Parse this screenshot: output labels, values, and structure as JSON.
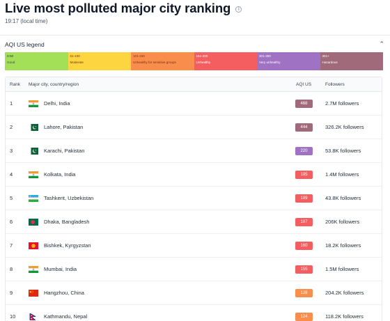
{
  "header": {
    "title": "Live most polluted major city ranking",
    "local_time": "19:17 (local time)"
  },
  "legend": {
    "title": "AQI US legend",
    "segments": [
      {
        "range": "0-50",
        "label": "Good",
        "color": "#a3df57"
      },
      {
        "range": "51-100",
        "label": "Moderate",
        "color": "#fcd540"
      },
      {
        "range": "101-150",
        "label": "Unhealthy for sensitive groups",
        "color": "#f88d4c"
      },
      {
        "range": "151-200",
        "label": "Unhealthy",
        "color": "#f55e60"
      },
      {
        "range": "201-300",
        "label": "Very unhealthy",
        "color": "#a072c4"
      },
      {
        "range": "301+",
        "label": "Hazardous",
        "color": "#a06a7b"
      }
    ]
  },
  "table": {
    "columns": {
      "rank": "Rank",
      "city": "Major city, country/region",
      "aqi": "AQI US",
      "followers": "Followers"
    },
    "rows": [
      {
        "rank": "1",
        "flag": "india-flag-icon",
        "city": "Delhi, India",
        "aqi": "468",
        "aqi_color": "#a06a7b",
        "followers": "2.7M followers"
      },
      {
        "rank": "2",
        "flag": "pakistan-flag-icon",
        "city": "Lahore, Pakistan",
        "aqi": "444",
        "aqi_color": "#a06a7b",
        "followers": "326.2K followers"
      },
      {
        "rank": "3",
        "flag": "pakistan-flag-icon",
        "city": "Karachi, Pakistan",
        "aqi": "220",
        "aqi_color": "#a072c4",
        "followers": "53.8K followers"
      },
      {
        "rank": "4",
        "flag": "india-flag-icon",
        "city": "Kolkata, India",
        "aqi": "195",
        "aqi_color": "#f55e60",
        "followers": "1.4M followers"
      },
      {
        "rank": "5",
        "flag": "uzbekistan-flag-icon",
        "city": "Tashkent, Uzbekistan",
        "aqi": "189",
        "aqi_color": "#f55e60",
        "followers": "43.8K followers"
      },
      {
        "rank": "6",
        "flag": "bangladesh-flag-icon",
        "city": "Dhaka, Bangladesh",
        "aqi": "187",
        "aqi_color": "#f55e60",
        "followers": "206K followers"
      },
      {
        "rank": "7",
        "flag": "kyrgyzstan-flag-icon",
        "city": "Bishkek, Kyrgyzstan",
        "aqi": "160",
        "aqi_color": "#f55e60",
        "followers": "18.2K followers"
      },
      {
        "rank": "8",
        "flag": "india-flag-icon",
        "city": "Mumbai, India",
        "aqi": "155",
        "aqi_color": "#f55e60",
        "followers": "1.5M followers"
      },
      {
        "rank": "9",
        "flag": "china-flag-icon",
        "city": "Hangzhou, China",
        "aqi": "128",
        "aqi_color": "#f88d4c",
        "followers": "204.2K followers"
      },
      {
        "rank": "10",
        "flag": "nepal-flag-icon",
        "city": "Kathmandu, Nepal",
        "aqi": "124",
        "aqi_color": "#f88d4c",
        "followers": "118.2K followers"
      }
    ]
  }
}
